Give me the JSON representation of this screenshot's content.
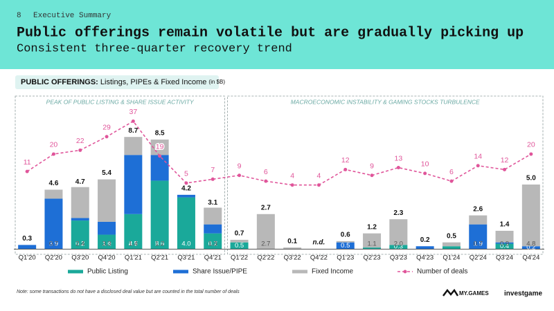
{
  "page": {
    "number": "8",
    "section": "Executive Summary",
    "title": "Public offerings remain volatile but are gradually picking up",
    "subtitle": "Consistent three-quarter recovery trend",
    "note": "Note: some transactions do not have a disclosed deal value but are counted in the total number of deals",
    "logos": [
      "MY.GAMES",
      "investgame"
    ]
  },
  "chart_data": {
    "type": "bar",
    "stacked": true,
    "heading": {
      "bold": "PUBLIC OFFERINGS:",
      "text": "Listings, PIPEs & Fixed Income",
      "unit": "(in $B)"
    },
    "panels": [
      {
        "title": "PEAK OF PUBLIC LISTING & SHARE ISSUE ACTIVITY",
        "first": 0,
        "last": 7
      },
      {
        "title": "MACROECONOMIC INSTABILITY & GAMING STOCKS TURBULENCE",
        "first": 8,
        "last": 19
      }
    ],
    "categories": [
      "Q1'20",
      "Q2'20",
      "Q3'20",
      "Q4'20",
      "Q1'21",
      "Q2'21",
      "Q3'21",
      "Q4'21",
      "Q1'22",
      "Q2'22",
      "Q3'22",
      "Q4'22",
      "Q1'23",
      "Q2'23",
      "Q3'23",
      "Q4'23",
      "Q1'24",
      "Q2'24",
      "Q3'24",
      "Q4'24"
    ],
    "series": [
      {
        "name": "Public Listing",
        "color": "#1aa99a",
        "values": [
          0,
          0,
          2.2,
          1.1,
          2.7,
          5.3,
          4.0,
          1.2,
          0.5,
          0,
          0,
          0,
          0,
          0.1,
          0.3,
          0,
          0.2,
          0,
          0.4,
          0
        ],
        "value_labels": [
          null,
          null,
          "2.2",
          "1.1",
          "2.7",
          "5.3",
          "4.0",
          "1.2",
          "0.5",
          null,
          null,
          null,
          null,
          null,
          "0.3",
          null,
          null,
          null,
          "0.4",
          null
        ]
      },
      {
        "name": "Share Issue/PIPE",
        "color": "#1e6fd6",
        "values": [
          0.3,
          3.9,
          0.2,
          1.0,
          4.6,
          2.0,
          0.2,
          0.7,
          0,
          0,
          0,
          0,
          0.5,
          0,
          0,
          0.2,
          0,
          1.9,
          0.1,
          0.2
        ],
        "value_labels": [
          null,
          "3.9",
          "0.2",
          "1.0",
          "4.6",
          "2.0",
          null,
          "0.7",
          null,
          null,
          null,
          null,
          "0.5",
          null,
          null,
          null,
          null,
          "1.9",
          null,
          "0.2"
        ]
      },
      {
        "name": "Fixed Income",
        "color": "#b8b8b8",
        "values": [
          0,
          0.7,
          2.4,
          3.3,
          1.4,
          1.2,
          0,
          1.3,
          0.2,
          2.7,
          0.1,
          0,
          0.1,
          1.1,
          2.0,
          0,
          0.3,
          0.7,
          0.9,
          4.8
        ],
        "value_labels": [
          null,
          "0.7",
          "2.4",
          "3.3",
          "1.4",
          "1.2",
          null,
          "1.3",
          null,
          "2.7",
          null,
          null,
          null,
          "1.1",
          "2.0",
          null,
          null,
          "0.7",
          "0.9",
          "4.8"
        ]
      },
      {
        "name": "Number of deals",
        "color": "#e0559a",
        "type": "line",
        "axis": "y2",
        "values": [
          11,
          20,
          22,
          29,
          37,
          19,
          5,
          7,
          9,
          6,
          4,
          4,
          12,
          9,
          13,
          10,
          6,
          14,
          12,
          20
        ]
      }
    ],
    "totals": {
      "values": [
        0.3,
        4.6,
        4.7,
        5.4,
        8.7,
        8.5,
        4.2,
        3.1,
        0.7,
        2.7,
        0.1,
        null,
        0.6,
        1.2,
        2.3,
        0.2,
        0.5,
        2.6,
        1.4,
        5.0
      ],
      "value_labels": [
        "0.3",
        "4.6",
        "4.7",
        "5.4",
        "8.7",
        "8.5",
        "4.2",
        "3.1",
        "0.7",
        "2.7",
        "0.1",
        "n.d.",
        "0.6",
        "1.2",
        "2.3",
        "0.2",
        "0.5",
        "2.6",
        "1.4",
        "5.0"
      ]
    },
    "ylim": [
      0,
      10
    ],
    "y2lim": [
      -29,
      37.5
    ],
    "legend": "bottom"
  }
}
